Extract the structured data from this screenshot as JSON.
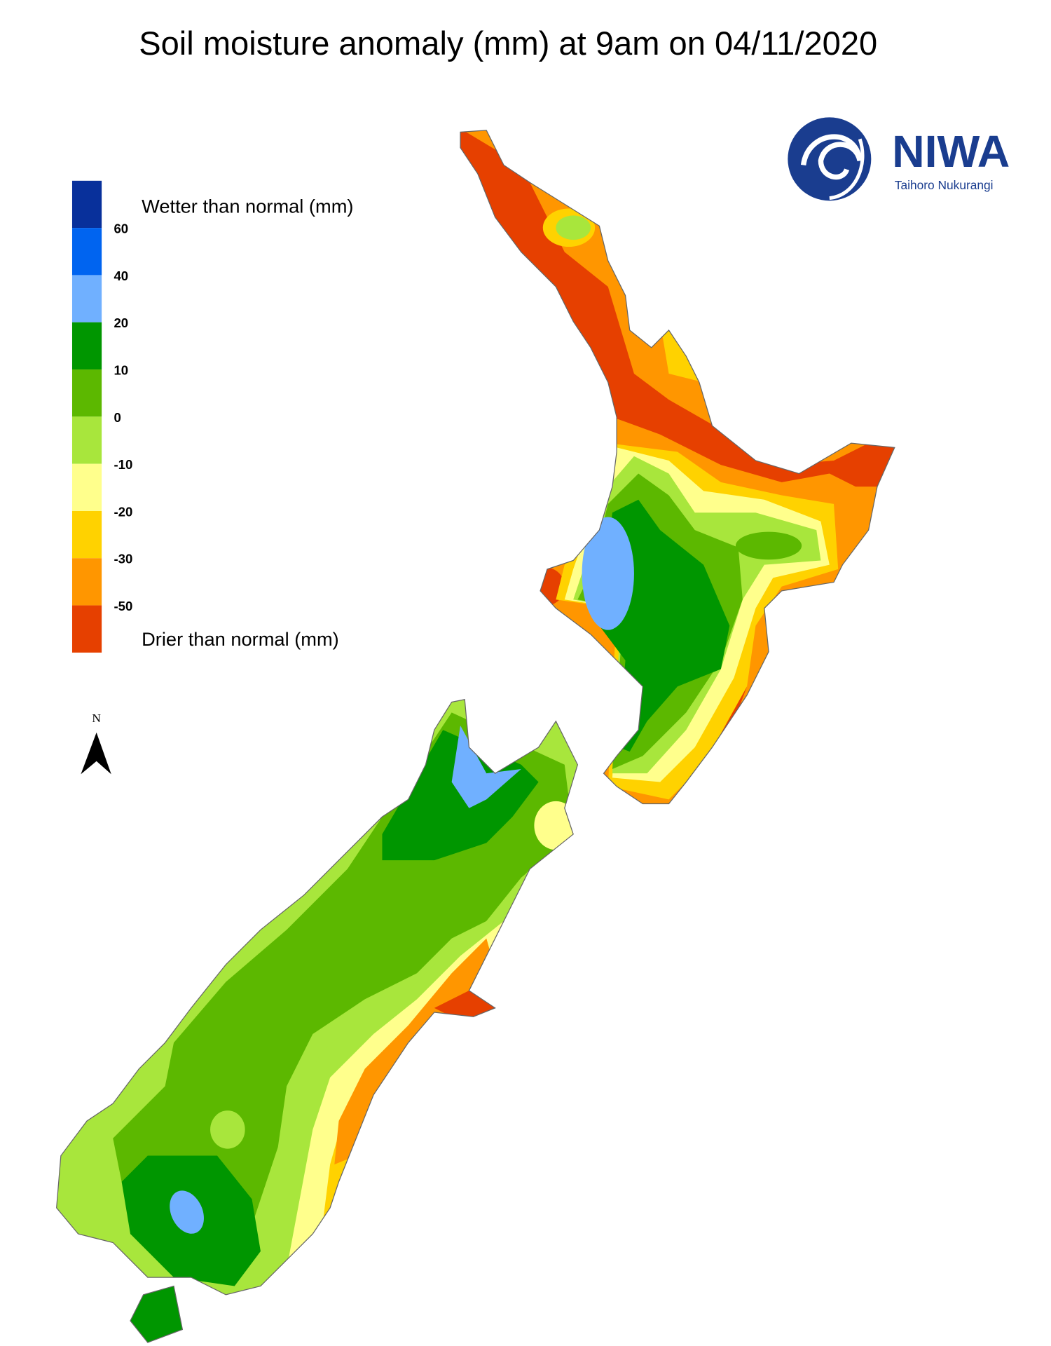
{
  "title": "Soil moisture anomaly (mm) at 9am on 04/11/2020",
  "legend": {
    "wetter": "Wetter than normal (mm)",
    "drier": "Drier than normal (mm)",
    "colors": [
      "#08309b",
      "#0064f0",
      "#70b0ff",
      "#009600",
      "#5cb800",
      "#a8e63c",
      "#ffff8c",
      "#ffd200",
      "#ff9600",
      "#e64000"
    ],
    "labels": [
      "60",
      "40",
      "20",
      "10",
      "0",
      "-10",
      "-20",
      "-30",
      "-50"
    ]
  },
  "logo": {
    "name": "NIWA",
    "subtitle": "Taihoro Nukurangi"
  },
  "north": "N"
}
